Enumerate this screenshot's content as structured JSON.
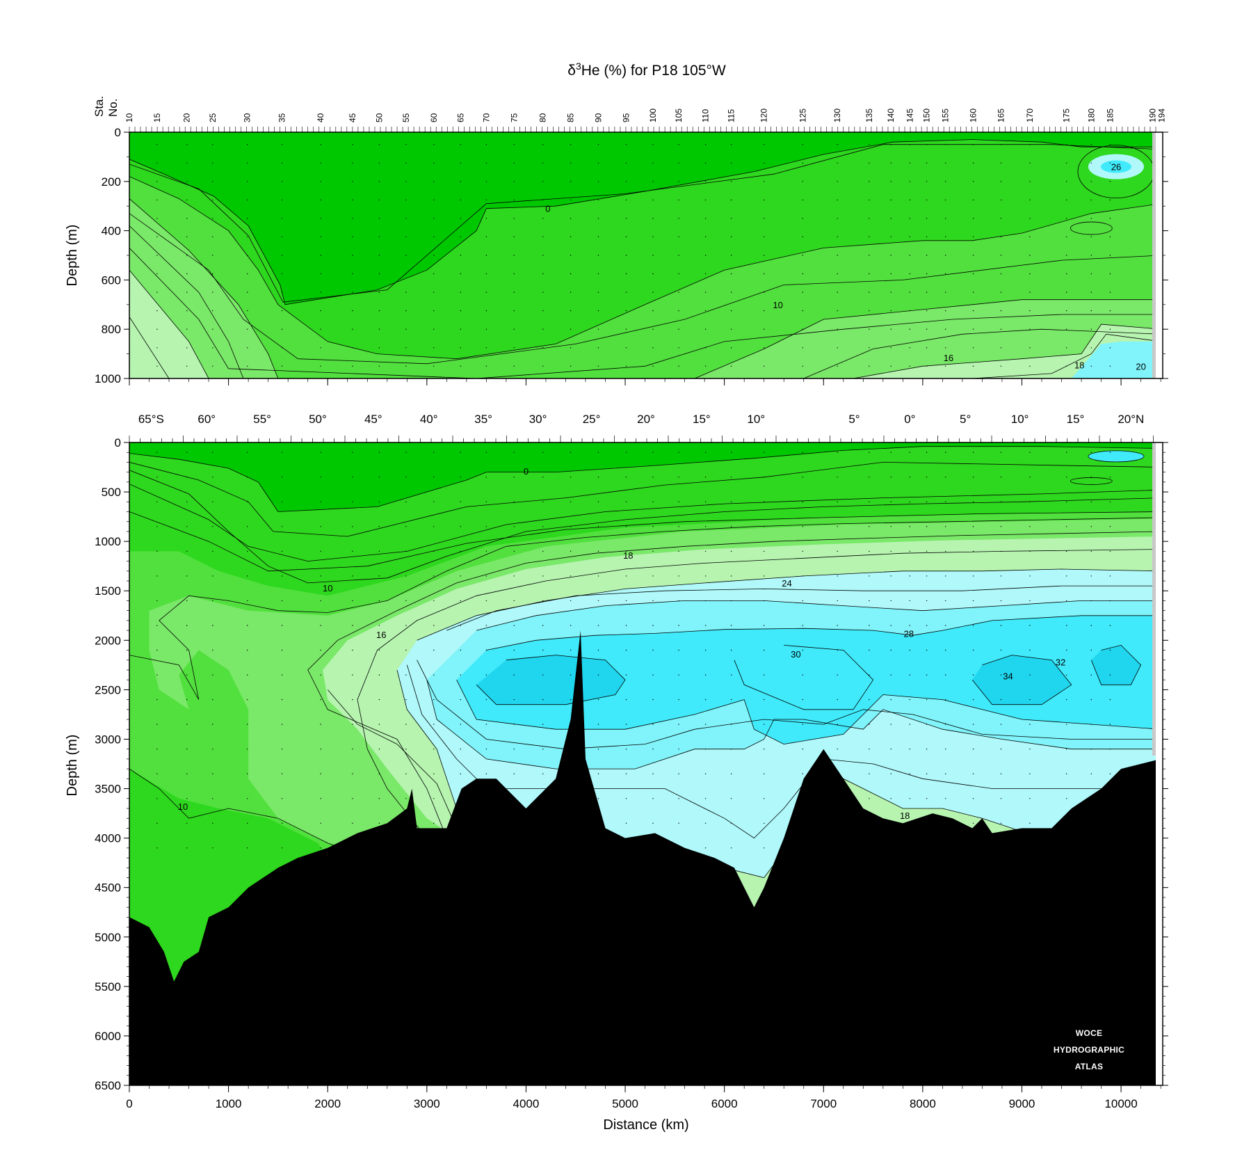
{
  "chart_data": {
    "type": "heatmap",
    "title": "δ³He (%) for P18 105°W",
    "title_parts": {
      "delta": "δ",
      "sup": "3",
      "rest": "He (%) for P18 105°W"
    },
    "xlabel": "Distance (km)",
    "ylabel": "Depth (m)",
    "station_axis_label": [
      "Sta.",
      "No."
    ],
    "xlim": [
      0,
      10500
    ],
    "x_ticks": [
      "0",
      "1000",
      "2000",
      "3000",
      "4000",
      "5000",
      "6000",
      "7000",
      "8000",
      "9000",
      "10000"
    ],
    "stations": [
      {
        "label": "10",
        "km": 0
      },
      {
        "label": "15",
        "km": 280
      },
      {
        "label": "20",
        "km": 580
      },
      {
        "label": "25",
        "km": 840
      },
      {
        "label": "30",
        "km": 1190
      },
      {
        "label": "35",
        "km": 1540
      },
      {
        "label": "40",
        "km": 1930
      },
      {
        "label": "45",
        "km": 2250
      },
      {
        "label": "50",
        "km": 2520
      },
      {
        "label": "55",
        "km": 2790
      },
      {
        "label": "60",
        "km": 3070
      },
      {
        "label": "65",
        "km": 3340
      },
      {
        "label": "70",
        "km": 3600
      },
      {
        "label": "75",
        "km": 3880
      },
      {
        "label": "80",
        "km": 4170
      },
      {
        "label": "85",
        "km": 4450
      },
      {
        "label": "90",
        "km": 4730
      },
      {
        "label": "95",
        "km": 5010
      },
      {
        "label": "100",
        "km": 5280
      },
      {
        "label": "105",
        "km": 5540
      },
      {
        "label": "110",
        "km": 5810
      },
      {
        "label": "115",
        "km": 6070
      },
      {
        "label": "120",
        "km": 6400
      },
      {
        "label": "125",
        "km": 6790
      },
      {
        "label": "130",
        "km": 7140
      },
      {
        "label": "135",
        "km": 7460
      },
      {
        "label": "140",
        "km": 7680
      },
      {
        "label": "145",
        "km": 7870
      },
      {
        "label": "150",
        "km": 8040
      },
      {
        "label": "155",
        "km": 8230
      },
      {
        "label": "160",
        "km": 8510
      },
      {
        "label": "165",
        "km": 8790
      },
      {
        "label": "170",
        "km": 9080
      },
      {
        "label": "175",
        "km": 9450
      },
      {
        "label": "180",
        "km": 9700
      },
      {
        "label": "185",
        "km": 9890
      },
      {
        "label": "190",
        "km": 10320
      },
      {
        "label": "194",
        "km": 10410
      }
    ],
    "latitude_labels": [
      {
        "label": "65°S",
        "km": 220
      },
      {
        "label": "60°",
        "km": 780
      },
      {
        "label": "55°",
        "km": 1340
      },
      {
        "label": "50°",
        "km": 1900
      },
      {
        "label": "45°",
        "km": 2460
      },
      {
        "label": "40°",
        "km": 3020
      },
      {
        "label": "35°",
        "km": 3570
      },
      {
        "label": "30°",
        "km": 4120
      },
      {
        "label": "25°",
        "km": 4660
      },
      {
        "label": "20°",
        "km": 5210
      },
      {
        "label": "15°",
        "km": 5770
      },
      {
        "label": "10°",
        "km": 6320
      },
      {
        "label": "5°",
        "km": 7310
      },
      {
        "label": "0°",
        "km": 7870
      },
      {
        "label": "5°",
        "km": 8430
      },
      {
        "label": "10°",
        "km": 8980
      },
      {
        "label": "15°",
        "km": 9540
      },
      {
        "label": "20°N",
        "km": 10100
      }
    ],
    "panels": [
      {
        "name": "upper",
        "ylim": [
          1000,
          0
        ],
        "y_ticks": [
          "0",
          "200",
          "400",
          "600",
          "800",
          "1000"
        ],
        "contour_labels": [
          {
            "text": "0",
            "km": 4220,
            "depth": 310
          },
          {
            "text": "10",
            "km": 6540,
            "depth": 700
          },
          {
            "text": "16",
            "km": 8260,
            "depth": 915
          },
          {
            "text": "18",
            "km": 9580,
            "depth": 945
          },
          {
            "text": "20",
            "km": 10200,
            "depth": 950
          },
          {
            "text": "26",
            "km": 9950,
            "depth": 140
          }
        ]
      },
      {
        "name": "lower",
        "ylim": [
          6500,
          0
        ],
        "y_ticks": [
          "0",
          "500",
          "1000",
          "1500",
          "2000",
          "2500",
          "3000",
          "3500",
          "4000",
          "4500",
          "5000",
          "5500",
          "6000",
          "6500"
        ],
        "contour_labels": [
          {
            "text": "0",
            "km": 4000,
            "depth": 290
          },
          {
            "text": "10",
            "km": 2000,
            "depth": 1470
          },
          {
            "text": "10",
            "km": 540,
            "depth": 3680
          },
          {
            "text": "16",
            "km": 2540,
            "depth": 1940
          },
          {
            "text": "18",
            "km": 5030,
            "depth": 1140
          },
          {
            "text": "24",
            "km": 6630,
            "depth": 1420
          },
          {
            "text": "28",
            "km": 7860,
            "depth": 1930
          },
          {
            "text": "30",
            "km": 6720,
            "depth": 2140
          },
          {
            "text": "32",
            "km": 9390,
            "depth": 2220
          },
          {
            "text": "34",
            "km": 8860,
            "depth": 2360
          },
          {
            "text": "18",
            "km": 7820,
            "depth": 3770
          }
        ]
      }
    ],
    "contour_interval": 2,
    "color_classes": [
      {
        "range": "< 0",
        "color": "#00c800"
      },
      {
        "range": "0 – 10",
        "color": "#2ed81e"
      },
      {
        "range": "10 – 14",
        "color": "#52e03e"
      },
      {
        "range": "14 – 16",
        "color": "#7ae868"
      },
      {
        "range": "16 – 18",
        "color": "#b6f4b0"
      },
      {
        "range": "18 – 24",
        "color": "#b0f8fa"
      },
      {
        "range": "24 – 28",
        "color": "#80f4fa"
      },
      {
        "range": "28 – 32",
        "color": "#40eafa"
      },
      {
        "range": "> 32",
        "color": "#20d6ee"
      }
    ],
    "seafloor_color": "#000000"
  },
  "watermark": {
    "lines": [
      "WOCE",
      "HYDROGRAPHIC",
      "ATLAS"
    ]
  }
}
